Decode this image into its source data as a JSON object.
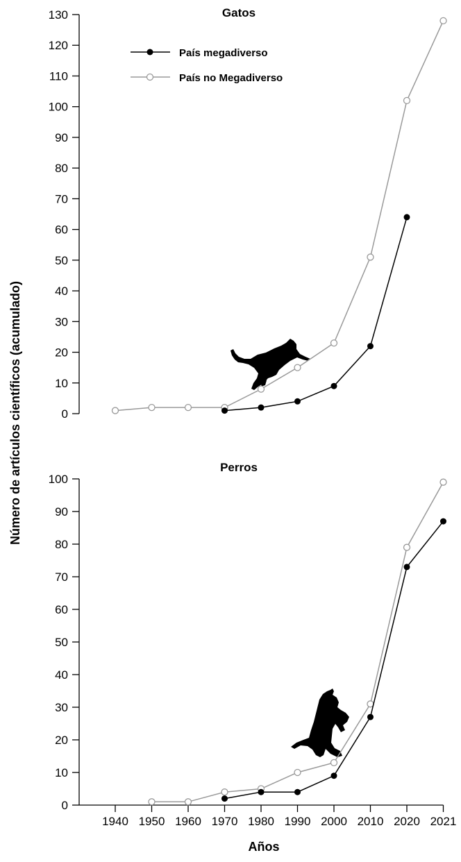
{
  "figure": {
    "ylabel": "Número de artículos científicos (acumulado)",
    "xlabel": "Años"
  },
  "legend": {
    "items": [
      {
        "label": "País megadiverso",
        "color": "#000000",
        "marker": "filled-circle"
      },
      {
        "label": "País no Megadiverso",
        "color": "#999999",
        "marker": "open-circle"
      }
    ]
  },
  "silhouettes": {
    "cats_panel": "cat-silhouette",
    "dogs_panel": "dog-silhouette"
  },
  "chart_data": [
    {
      "type": "line",
      "title": "Gatos",
      "ylim": [
        0,
        130
      ],
      "yticks": [
        0,
        10,
        20,
        30,
        40,
        50,
        60,
        70,
        80,
        90,
        100,
        110,
        120,
        130
      ],
      "series": [
        {
          "name": "País megadiverso",
          "color": "#000000",
          "marker": "filled",
          "x": [
            1970,
            1980,
            1990,
            2000,
            2010,
            2020
          ],
          "values": [
            1,
            2,
            4,
            9,
            22,
            64
          ]
        },
        {
          "name": "País no Megadiverso",
          "color": "#999999",
          "marker": "open",
          "x": [
            1940,
            1950,
            1960,
            1970,
            1980,
            1990,
            2000,
            2010,
            2020,
            2021
          ],
          "values": [
            1,
            2,
            2,
            2,
            8,
            15,
            23,
            51,
            102,
            128
          ]
        }
      ]
    },
    {
      "type": "line",
      "title": "Perros",
      "ylim": [
        0,
        100
      ],
      "yticks": [
        0,
        10,
        20,
        30,
        40,
        50,
        60,
        70,
        80,
        90,
        100
      ],
      "xticks": [
        "1940",
        "1950",
        "1960",
        "1970",
        "1980",
        "1990",
        "2000",
        "2010",
        "2020",
        "2021"
      ],
      "series": [
        {
          "name": "País megadiverso",
          "color": "#000000",
          "marker": "filled",
          "x": [
            1970,
            1980,
            1990,
            2000,
            2010,
            2020,
            2021
          ],
          "values": [
            2,
            4,
            4,
            9,
            27,
            73,
            87
          ]
        },
        {
          "name": "País no Megadiverso",
          "color": "#999999",
          "marker": "open",
          "x": [
            1950,
            1960,
            1970,
            1980,
            1990,
            2000,
            2010,
            2020,
            2021
          ],
          "values": [
            1,
            1,
            4,
            5,
            10,
            13,
            31,
            79,
            99
          ]
        }
      ]
    }
  ]
}
